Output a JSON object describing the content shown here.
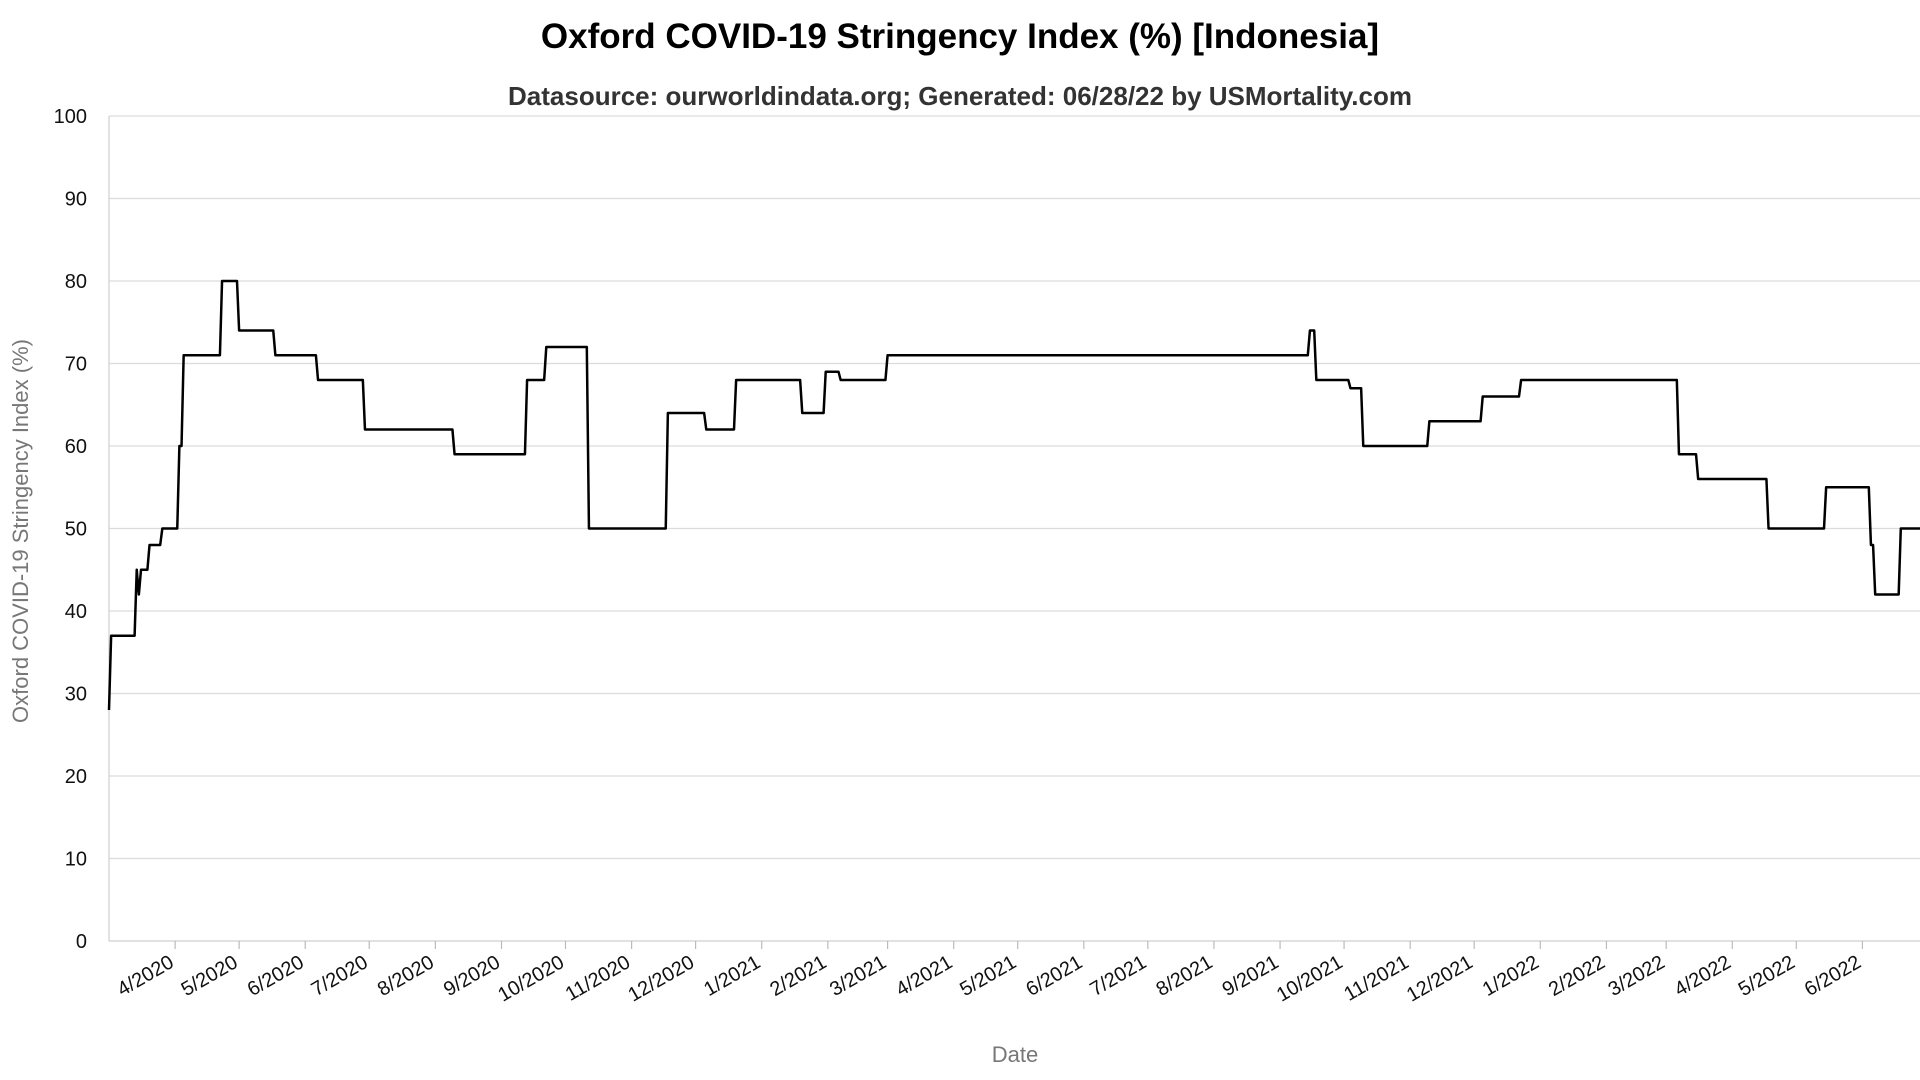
{
  "chart_data": {
    "type": "line",
    "title": "Oxford COVID-19 Stringency Index (%) [Indonesia]",
    "subtitle": "Datasource: ourworldindata.org; Generated: 06/28/22 by USMortality.com",
    "xlabel": "Date",
    "ylabel": "Oxford COVID-19 Stringency Index (%)",
    "ylim": [
      0,
      100
    ],
    "yticks": [
      0,
      10,
      20,
      30,
      40,
      50,
      60,
      70,
      80,
      90,
      100
    ],
    "xlim": [
      "2020-03-01",
      "2022-06-28"
    ],
    "xticks": [
      {
        "date": "2020-04-01",
        "label": "4/2020"
      },
      {
        "date": "2020-05-01",
        "label": "5/2020"
      },
      {
        "date": "2020-06-01",
        "label": "6/2020"
      },
      {
        "date": "2020-07-01",
        "label": "7/2020"
      },
      {
        "date": "2020-08-01",
        "label": "8/2020"
      },
      {
        "date": "2020-09-01",
        "label": "9/2020"
      },
      {
        "date": "2020-10-01",
        "label": "10/2020"
      },
      {
        "date": "2020-11-01",
        "label": "11/2020"
      },
      {
        "date": "2020-12-01",
        "label": "12/2020"
      },
      {
        "date": "2021-01-01",
        "label": "1/2021"
      },
      {
        "date": "2021-02-01",
        "label": "2/2021"
      },
      {
        "date": "2021-03-01",
        "label": "3/2021"
      },
      {
        "date": "2021-04-01",
        "label": "4/2021"
      },
      {
        "date": "2021-05-01",
        "label": "5/2021"
      },
      {
        "date": "2021-06-01",
        "label": "6/2021"
      },
      {
        "date": "2021-07-01",
        "label": "7/2021"
      },
      {
        "date": "2021-08-01",
        "label": "8/2021"
      },
      {
        "date": "2021-09-01",
        "label": "9/2021"
      },
      {
        "date": "2021-10-01",
        "label": "10/2021"
      },
      {
        "date": "2021-11-01",
        "label": "11/2021"
      },
      {
        "date": "2021-12-01",
        "label": "12/2021"
      },
      {
        "date": "2022-01-01",
        "label": "1/2022"
      },
      {
        "date": "2022-02-01",
        "label": "2/2022"
      },
      {
        "date": "2022-03-01",
        "label": "3/2022"
      },
      {
        "date": "2022-04-01",
        "label": "4/2022"
      },
      {
        "date": "2022-05-01",
        "label": "5/2022"
      },
      {
        "date": "2022-06-01",
        "label": "6/2022"
      }
    ],
    "grid": true,
    "line_color": "#000000",
    "series": [
      {
        "points": [
          {
            "x": "2020-03-01",
            "y": 28
          },
          {
            "x": "2020-03-02",
            "y": 37
          },
          {
            "x": "2020-03-12",
            "y": 37
          },
          {
            "x": "2020-03-14",
            "y": 45
          },
          {
            "x": "2020-03-15",
            "y": 42
          },
          {
            "x": "2020-03-16",
            "y": 45
          },
          {
            "x": "2020-03-20",
            "y": 48
          },
          {
            "x": "2020-03-26",
            "y": 50
          },
          {
            "x": "2020-04-03",
            "y": 60
          },
          {
            "x": "2020-04-05",
            "y": 71
          },
          {
            "x": "2020-04-23",
            "y": 80
          },
          {
            "x": "2020-05-01",
            "y": 74
          },
          {
            "x": "2020-05-18",
            "y": 71
          },
          {
            "x": "2020-06-07",
            "y": 68
          },
          {
            "x": "2020-06-29",
            "y": 62
          },
          {
            "x": "2020-08-10",
            "y": 59
          },
          {
            "x": "2020-09-13",
            "y": 68
          },
          {
            "x": "2020-09-22",
            "y": 72
          },
          {
            "x": "2020-10-12",
            "y": 50
          },
          {
            "x": "2020-11-18",
            "y": 64
          },
          {
            "x": "2020-12-06",
            "y": 62
          },
          {
            "x": "2020-12-20",
            "y": 68
          },
          {
            "x": "2021-01-20",
            "y": 64
          },
          {
            "x": "2021-01-31",
            "y": 69
          },
          {
            "x": "2021-02-07",
            "y": 68
          },
          {
            "x": "2021-03-01",
            "y": 71
          },
          {
            "x": "2021-09-15",
            "y": 74
          },
          {
            "x": "2021-09-18",
            "y": 68
          },
          {
            "x": "2021-10-04",
            "y": 67
          },
          {
            "x": "2021-10-10",
            "y": 60
          },
          {
            "x": "2021-11-10",
            "y": 63
          },
          {
            "x": "2021-12-05",
            "y": 66
          },
          {
            "x": "2021-12-23",
            "y": 68
          },
          {
            "x": "2022-03-07",
            "y": 59
          },
          {
            "x": "2022-03-16",
            "y": 56
          },
          {
            "x": "2022-04-18",
            "y": 50
          },
          {
            "x": "2022-05-15",
            "y": 55
          },
          {
            "x": "2022-06-05",
            "y": 48
          },
          {
            "x": "2022-06-07",
            "y": 42
          },
          {
            "x": "2022-06-19",
            "y": 50
          },
          {
            "x": "2022-06-28",
            "y": 50
          }
        ]
      }
    ]
  }
}
